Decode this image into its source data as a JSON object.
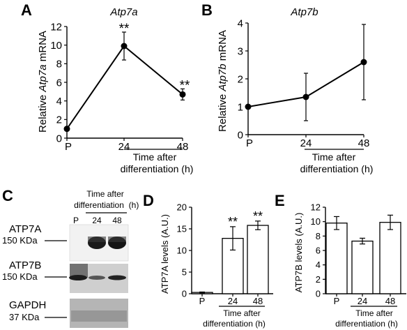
{
  "panels": {
    "A": {
      "letter": "A",
      "title": "Atp7a",
      "ylabel_pre": "Relative ",
      "ylabel_gene": "Atp7a",
      "ylabel_post": " mRNA"
    },
    "B": {
      "letter": "B",
      "title": "Atp7b",
      "ylabel_pre": "Relative ",
      "ylabel_gene": "Atp7b",
      "ylabel_post": " mRNA"
    },
    "C": {
      "letter": "C",
      "time_line1": "Time after",
      "time_line2": "differentiation",
      "time_unit": "(h)",
      "lanes": [
        "P",
        "24",
        "48"
      ],
      "blots": [
        {
          "name": "ATP7A",
          "mw": "150 KDa"
        },
        {
          "name": "ATP7B",
          "mw": "150 KDa"
        },
        {
          "name": "GAPDH",
          "mw": "37 KDa"
        }
      ]
    },
    "D": {
      "letter": "D"
    },
    "E": {
      "letter": "E"
    }
  },
  "common": {
    "time_after": "Time after",
    "differentiation_h": "differentiation (h)",
    "sig": "**"
  },
  "chart_data": [
    {
      "id": "A",
      "type": "line",
      "title": "Atp7a",
      "xlabel": "Time after differentiation (h)",
      "ylabel": "Relative Atp7a mRNA",
      "categories": [
        "P",
        "24",
        "48"
      ],
      "values": [
        1.0,
        9.9,
        4.7
      ],
      "errors": [
        0.0,
        1.5,
        0.6
      ],
      "significance": [
        "",
        "**",
        "**"
      ],
      "ylim": [
        0,
        12
      ],
      "yticks": [
        0,
        2,
        4,
        6,
        8,
        10,
        12
      ]
    },
    {
      "id": "B",
      "type": "line",
      "title": "Atp7b",
      "xlabel": "Time after differentiation (h)",
      "ylabel": "Relative Atp7b mRNA",
      "categories": [
        "P",
        "24",
        "48"
      ],
      "values": [
        1.0,
        1.35,
        2.6
      ],
      "errors": [
        0.0,
        0.85,
        1.35
      ],
      "significance": [
        "",
        "",
        ""
      ],
      "ylim": [
        0,
        4
      ],
      "yticks": [
        0,
        1,
        2,
        3,
        4
      ]
    },
    {
      "id": "D",
      "type": "bar",
      "title": "",
      "xlabel": "Time after differentiation (h)",
      "ylabel": "ATP7A levels (A.U.)",
      "categories": [
        "P",
        "24",
        "48"
      ],
      "values": [
        0.3,
        12.8,
        15.8
      ],
      "errors": [
        0.1,
        2.7,
        1.0
      ],
      "significance": [
        "",
        "**",
        "**"
      ],
      "ylim": [
        0,
        20
      ],
      "yticks": [
        0,
        5,
        10,
        15,
        20
      ]
    },
    {
      "id": "E",
      "type": "bar",
      "title": "",
      "xlabel": "Time after differentiation (h)",
      "ylabel": "ATP7B levels (A.U.)",
      "categories": [
        "P",
        "24",
        "48"
      ],
      "values": [
        9.8,
        7.3,
        9.9
      ],
      "errors": [
        0.9,
        0.4,
        1.0
      ],
      "significance": [
        "",
        "",
        ""
      ],
      "ylim": [
        0,
        12
      ],
      "yticks": [
        0,
        2,
        4,
        6,
        8,
        10,
        12
      ]
    }
  ]
}
